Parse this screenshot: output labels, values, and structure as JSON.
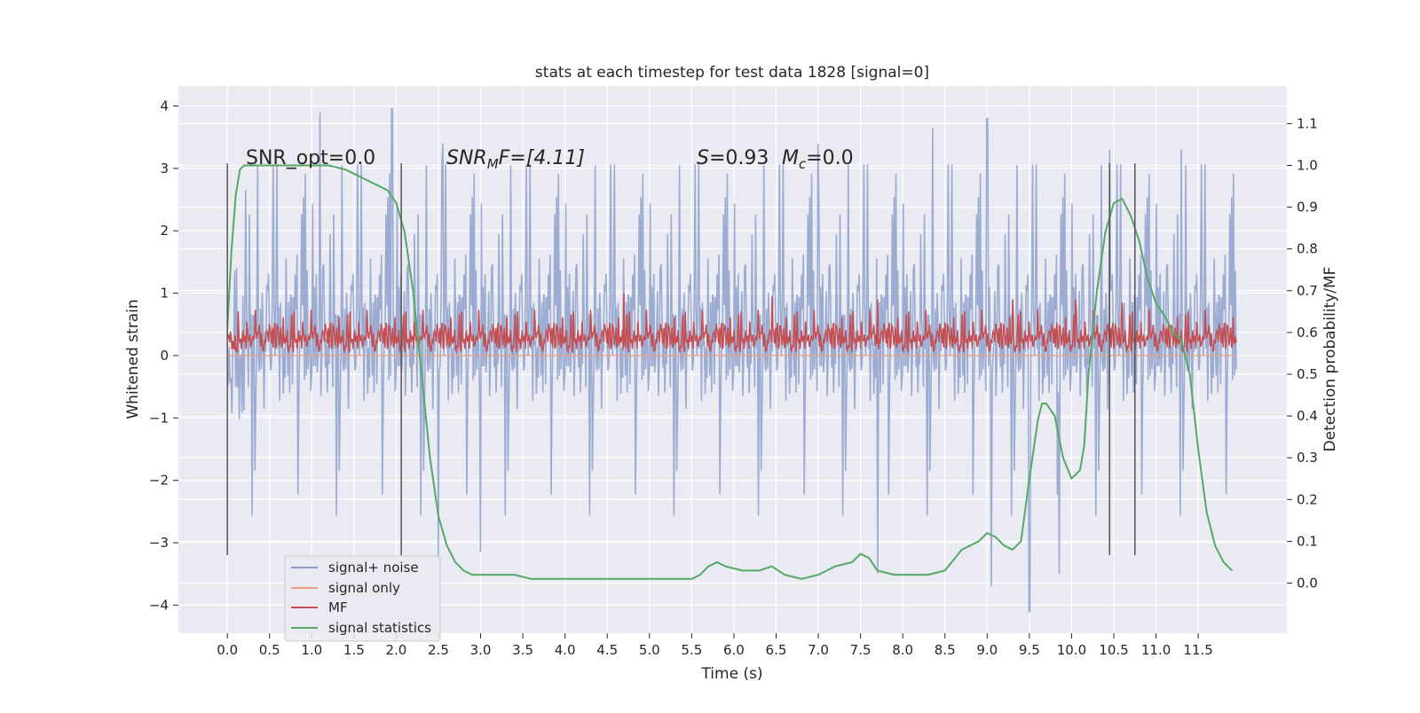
{
  "chart_data": {
    "type": "line",
    "title": "stats at each timestep for test data 1828 [signal=0]",
    "xlabel": "Time (s)",
    "ylabel": "Whitened strain",
    "ylabel_right": "Detection probability/MF",
    "xlim": [
      -0.58,
      12.55
    ],
    "ylim": [
      -4.45,
      4.32
    ],
    "ylim_right": [
      -0.12,
      1.19
    ],
    "x_ticks": [
      0.0,
      0.5,
      1.0,
      1.5,
      2.0,
      2.5,
      3.0,
      3.5,
      4.0,
      4.5,
      5.0,
      5.5,
      6.0,
      6.5,
      7.0,
      7.5,
      8.0,
      8.5,
      9.0,
      9.5,
      10.0,
      10.5,
      11.0,
      11.5
    ],
    "x_tick_labels": [
      "0.0",
      "0.5",
      "1.0",
      "1.5",
      "2.0",
      "2.5",
      "3.0",
      "3.5",
      "4.0",
      "4.5",
      "5.0",
      "5.5",
      "6.0",
      "6.5",
      "7.0",
      "7.5",
      "8.0",
      "8.5",
      "9.0",
      "9.5",
      "10.0",
      "10.5",
      "11.0",
      "11.5"
    ],
    "y_ticks": [
      -4,
      -3,
      -2,
      -1,
      0,
      1,
      2,
      3,
      4
    ],
    "y_tick_labels": [
      "−4",
      "−3",
      "−2",
      "−1",
      "0",
      "1",
      "2",
      "3",
      "4"
    ],
    "y_right_ticks": [
      0.0,
      0.1,
      0.2,
      0.3,
      0.4,
      0.5,
      0.6,
      0.7,
      0.8,
      0.9,
      1.0,
      1.1
    ],
    "y_right_tick_labels": [
      "0.0",
      "0.1",
      "0.2",
      "0.3",
      "0.4",
      "0.5",
      "0.6",
      "0.7",
      "0.8",
      "0.9",
      "1.0",
      "1.1"
    ],
    "grid": true,
    "legend_position": "lower-left",
    "legend": [
      "signal+ noise",
      "signal only",
      "MF",
      "signal statistics"
    ],
    "annotations": {
      "snr_opt": "SNR_opt=0.0",
      "snr_mf_base": "SNR",
      "snr_mf_sub": "M",
      "snr_mf_rest": "F=[4.11]",
      "s_italic": "S",
      "s_value": "=0.93",
      "mc_base": "M",
      "mc_sub": "c",
      "mc_value": "=0.0"
    },
    "vertical_lines_s": [
      0.0,
      2.06,
      10.45,
      10.75
    ],
    "vertical_lines_range": [
      -3.2,
      3.08
    ],
    "series": [
      {
        "name": "signal+ noise",
        "axis": "left",
        "color": "#8da0cb",
        "x_range": [
          0.0,
          11.95
        ],
        "samples": 1100,
        "envelope_typical": 2.2,
        "peaks": [
          {
            "x": 1.1,
            "y": 3.9
          },
          {
            "x": 1.95,
            "y": 3.95
          },
          {
            "x": 2.55,
            "y": 3.4
          },
          {
            "x": 7.0,
            "y": 3.4
          },
          {
            "x": 8.35,
            "y": 3.65
          },
          {
            "x": 9.0,
            "y": 3.8
          },
          {
            "x": 10.45,
            "y": 3.3
          },
          {
            "x": 11.3,
            "y": 3.3
          },
          {
            "x": 9.5,
            "y": -4.1
          },
          {
            "x": 9.05,
            "y": -3.7
          },
          {
            "x": 7.7,
            "y": -3.5
          },
          {
            "x": 2.5,
            "y": -3.3
          },
          {
            "x": 3.0,
            "y": -3.15
          },
          {
            "x": 9.85,
            "y": -3.5
          }
        ]
      },
      {
        "name": "signal only",
        "axis": "left",
        "color": "#e8a080",
        "x": [
          0.0,
          11.95
        ],
        "y": [
          0.0,
          0.0
        ]
      },
      {
        "name": "MF",
        "axis": "left",
        "color": "#c44e52",
        "x_range": [
          0.0,
          11.95
        ],
        "samples": 1300,
        "baseline": 0.05,
        "typical_max": 0.6,
        "peaks": [
          {
            "x": 4.7,
            "y": 1.0
          },
          {
            "x": 6.45,
            "y": 0.95
          },
          {
            "x": 7.7,
            "y": 0.9
          },
          {
            "x": 9.3,
            "y": 0.9
          },
          {
            "x": 10.05,
            "y": 0.9
          },
          {
            "x": 10.6,
            "y": 0.85
          }
        ]
      },
      {
        "name": "signal statistics",
        "axis": "right",
        "color": "#55a868",
        "x": [
          0.0,
          0.05,
          0.1,
          0.15,
          0.2,
          0.3,
          0.5,
          0.8,
          1.2,
          1.4,
          1.6,
          1.8,
          1.9,
          2.0,
          2.1,
          2.2,
          2.3,
          2.4,
          2.5,
          2.6,
          2.7,
          2.8,
          2.9,
          3.0,
          3.2,
          3.4,
          3.6,
          3.8,
          4.0,
          4.5,
          5.0,
          5.5,
          5.6,
          5.7,
          5.8,
          5.9,
          6.1,
          6.3,
          6.45,
          6.6,
          6.8,
          7.0,
          7.2,
          7.4,
          7.5,
          7.6,
          7.7,
          7.9,
          8.1,
          8.3,
          8.5,
          8.7,
          8.9,
          9.0,
          9.1,
          9.2,
          9.3,
          9.4,
          9.5,
          9.6,
          9.65,
          9.7,
          9.8,
          9.9,
          10.0,
          10.1,
          10.15,
          10.2,
          10.3,
          10.4,
          10.5,
          10.6,
          10.7,
          10.8,
          10.9,
          11.0,
          11.1,
          11.2,
          11.3,
          11.4,
          11.5,
          11.6,
          11.7,
          11.8,
          11.9
        ],
        "y": [
          0.61,
          0.8,
          0.93,
          0.99,
          1.0,
          1.0,
          1.0,
          1.0,
          1.0,
          0.99,
          0.97,
          0.95,
          0.94,
          0.91,
          0.84,
          0.7,
          0.5,
          0.3,
          0.16,
          0.09,
          0.05,
          0.03,
          0.02,
          0.02,
          0.02,
          0.02,
          0.01,
          0.01,
          0.01,
          0.01,
          0.01,
          0.01,
          0.02,
          0.04,
          0.05,
          0.04,
          0.03,
          0.03,
          0.04,
          0.02,
          0.01,
          0.02,
          0.04,
          0.05,
          0.07,
          0.06,
          0.03,
          0.02,
          0.02,
          0.02,
          0.03,
          0.08,
          0.1,
          0.12,
          0.11,
          0.09,
          0.08,
          0.1,
          0.25,
          0.39,
          0.43,
          0.43,
          0.4,
          0.3,
          0.25,
          0.27,
          0.33,
          0.5,
          0.7,
          0.84,
          0.91,
          0.92,
          0.88,
          0.82,
          0.73,
          0.67,
          0.64,
          0.6,
          0.58,
          0.5,
          0.32,
          0.17,
          0.09,
          0.05,
          0.03
        ]
      }
    ]
  }
}
